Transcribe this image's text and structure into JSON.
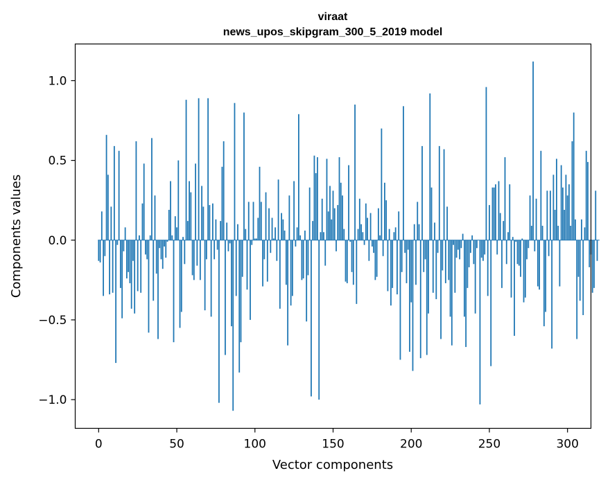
{
  "chart_data": {
    "type": "bar",
    "title": "viraat",
    "subtitle": "news_upos_skipgram_300_5_2019 model",
    "xlabel": "Vector components",
    "ylabel": "Components values",
    "xlim": [
      -15,
      315
    ],
    "ylim": [
      -1.18,
      1.23
    ],
    "xticks": [
      0,
      50,
      100,
      150,
      200,
      250,
      300
    ],
    "xtick_labels": [
      "0",
      "50",
      "100",
      "150",
      "200",
      "250",
      "300"
    ],
    "yticks": [
      -1.0,
      -0.5,
      0.0,
      0.5,
      1.0
    ],
    "ytick_labels": [
      "−1.0",
      "−0.5",
      "0.0",
      "0.5",
      "1.0"
    ],
    "bar_color": "#1f77b4",
    "values": [
      -0.13,
      -0.14,
      0.18,
      -0.35,
      -0.1,
      0.66,
      0.41,
      -0.34,
      0.21,
      -0.33,
      0.59,
      -0.77,
      -0.03,
      0.56,
      -0.3,
      -0.49,
      -0.07,
      0.08,
      -0.24,
      -0.2,
      -0.27,
      -0.43,
      -0.13,
      -0.46,
      0.62,
      -0.32,
      0.03,
      -0.33,
      0.23,
      0.48,
      -0.09,
      -0.12,
      -0.58,
      0.03,
      0.64,
      -0.38,
      0.28,
      -0.21,
      -0.62,
      -0.05,
      -0.12,
      -0.18,
      -0.04,
      -0.11,
      -0.01,
      0.19,
      0.37,
      0.03,
      -0.64,
      0.15,
      0.08,
      0.5,
      -0.55,
      -0.45,
      0.02,
      -0.15,
      0.88,
      0.12,
      0.37,
      0.3,
      -0.22,
      -0.25,
      0.48,
      -0.16,
      0.89,
      -0.25,
      0.34,
      0.21,
      -0.44,
      -0.12,
      0.89,
      0.22,
      -0.48,
      0.23,
      -0.12,
      0.13,
      -0.06,
      -1.02,
      0.12,
      0.46,
      0.62,
      -0.72,
      0.11,
      -0.07,
      -0.02,
      -0.54,
      -1.07,
      0.86,
      -0.35,
      0.1,
      -0.83,
      -0.64,
      -0.23,
      0.8,
      0.07,
      -0.31,
      0.24,
      -0.5,
      -0.03,
      0.24,
      0.01,
      0.01,
      0.14,
      0.46,
      0.24,
      -0.29,
      -0.12,
      0.3,
      -0.26,
      0.2,
      -0.08,
      0.14,
      0.01,
      0.08,
      -0.13,
      0.38,
      -0.43,
      0.17,
      0.13,
      0.06,
      -0.28,
      -0.66,
      0.28,
      -0.41,
      -0.35,
      0.37,
      -0.04,
      0.08,
      0.79,
      0.03,
      -0.25,
      -0.24,
      0.06,
      -0.51,
      -0.22,
      0.33,
      -0.98,
      0.12,
      0.53,
      0.42,
      0.52,
      -1.0,
      0.05,
      0.26,
      0.05,
      -0.16,
      0.51,
      0.18,
      0.34,
      0.13,
      0.31,
      0.2,
      -0.07,
      0.22,
      0.52,
      0.36,
      0.28,
      0.07,
      -0.26,
      -0.27,
      0.47,
      -0.01,
      -0.2,
      -0.28,
      0.85,
      -0.4,
      0.07,
      0.26,
      0.1,
      0.05,
      -0.03,
      0.23,
      0.14,
      -0.13,
      0.17,
      -0.04,
      -0.08,
      -0.25,
      -0.23,
      0.2,
      0.03,
      0.7,
      -0.1,
      0.36,
      0.25,
      -0.32,
      0.07,
      -0.41,
      -0.3,
      0.05,
      0.08,
      -0.34,
      0.18,
      -0.75,
      -0.2,
      0.84,
      -0.08,
      -0.27,
      -0.06,
      -0.7,
      -0.39,
      -0.82,
      0.1,
      -0.28,
      0.24,
      0.1,
      -0.74,
      0.59,
      -0.2,
      -0.12,
      -0.72,
      -0.46,
      0.92,
      0.33,
      -0.33,
      0.11,
      -0.37,
      -0.08,
      0.59,
      -0.62,
      -0.19,
      0.57,
      -0.27,
      0.21,
      -0.25,
      -0.48,
      -0.66,
      -0.03,
      -0.33,
      -0.11,
      -0.06,
      -0.12,
      -0.05,
      0.04,
      -0.48,
      -0.67,
      -0.3,
      -0.17,
      -0.08,
      0.03,
      -0.15,
      -0.46,
      -0.05,
      0.0,
      -1.03,
      -0.11,
      -0.13,
      -0.09,
      0.96,
      -0.35,
      0.22,
      -0.79,
      0.33,
      0.33,
      0.35,
      -0.09,
      0.37,
      0.17,
      -0.3,
      0.12,
      0.52,
      -0.15,
      0.05,
      0.35,
      -0.36,
      0.02,
      -0.6,
      -0.01,
      -0.15,
      -0.16,
      -0.23,
      0.01,
      -0.39,
      -0.36,
      -0.12,
      -0.05,
      0.28,
      0.09,
      1.12,
      -0.07,
      0.26,
      -0.29,
      -0.31,
      0.56,
      0.09,
      -0.54,
      -0.45,
      0.31,
      -0.1,
      0.31,
      -0.68,
      0.41,
      0.19,
      0.51,
      0.09,
      -0.29,
      0.47,
      0.33,
      0.19,
      0.41,
      0.28,
      0.35,
      0.09,
      0.62,
      0.8,
      0.13,
      -0.62,
      -0.23,
      -0.38,
      0.13,
      -0.47,
      0.08,
      0.56,
      0.49,
      -0.17,
      -0.09,
      -0.33,
      -0.3,
      0.31,
      -0.13,
      0.0
    ]
  }
}
